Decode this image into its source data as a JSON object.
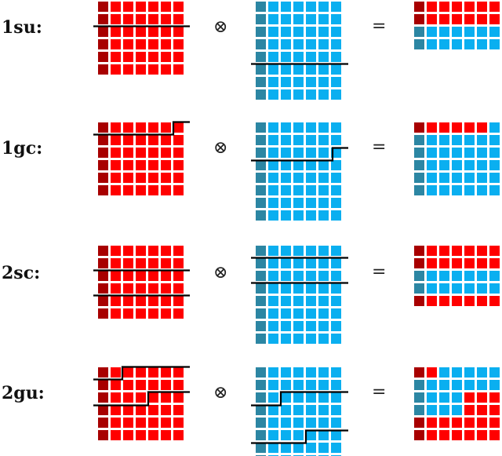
{
  "colors": {
    "red": "#ff0000",
    "dark_red": "#a80000",
    "blue": "#0aaff0",
    "dark_blue": "#2c86a3",
    "cut_line": "#000000"
  },
  "symbols": {
    "kron": "⊗",
    "equals": "="
  },
  "rows": [
    {
      "label": "1su:",
      "a": {
        "rows": 6,
        "cols": 7
      },
      "b": {
        "rows": 8,
        "cols": 7
      },
      "result": {
        "rows": 4,
        "cols": 7,
        "pattern": [
          "rrrrrrr",
          "rrrrrrr",
          "bbbbbbb",
          "bbbbbbb"
        ]
      }
    },
    {
      "label": "1gc:",
      "a": {
        "rows": 6,
        "cols": 7
      },
      "b": {
        "rows": 8,
        "cols": 7
      },
      "result": {
        "rows": 6,
        "cols": 7,
        "pattern": [
          "rrrrrrb",
          "bbbbbbb",
          "bbbbbbb",
          "bbbbbbb",
          "bbbbbbb",
          "bbbbbbb"
        ]
      }
    },
    {
      "label": "2sc:",
      "a": {
        "rows": 6,
        "cols": 7
      },
      "b": {
        "rows": 8,
        "cols": 7
      },
      "result": {
        "rows": 5,
        "cols": 7,
        "pattern": [
          "rrrrrrr",
          "rrrrrrr",
          "bbbbbbb",
          "bbbbbbb",
          "rrrrrrr"
        ]
      }
    },
    {
      "label": "2gu:",
      "a": {
        "rows": 6,
        "cols": 7
      },
      "b": {
        "rows": 8,
        "cols": 7
      },
      "result": {
        "rows": 6,
        "cols": 7,
        "pattern": [
          "rrbbbbb",
          "bbbbbbb",
          "bbbbrrr",
          "bbbbrrr",
          "rrrrrrr",
          "rrrrrrr"
        ]
      }
    }
  ]
}
